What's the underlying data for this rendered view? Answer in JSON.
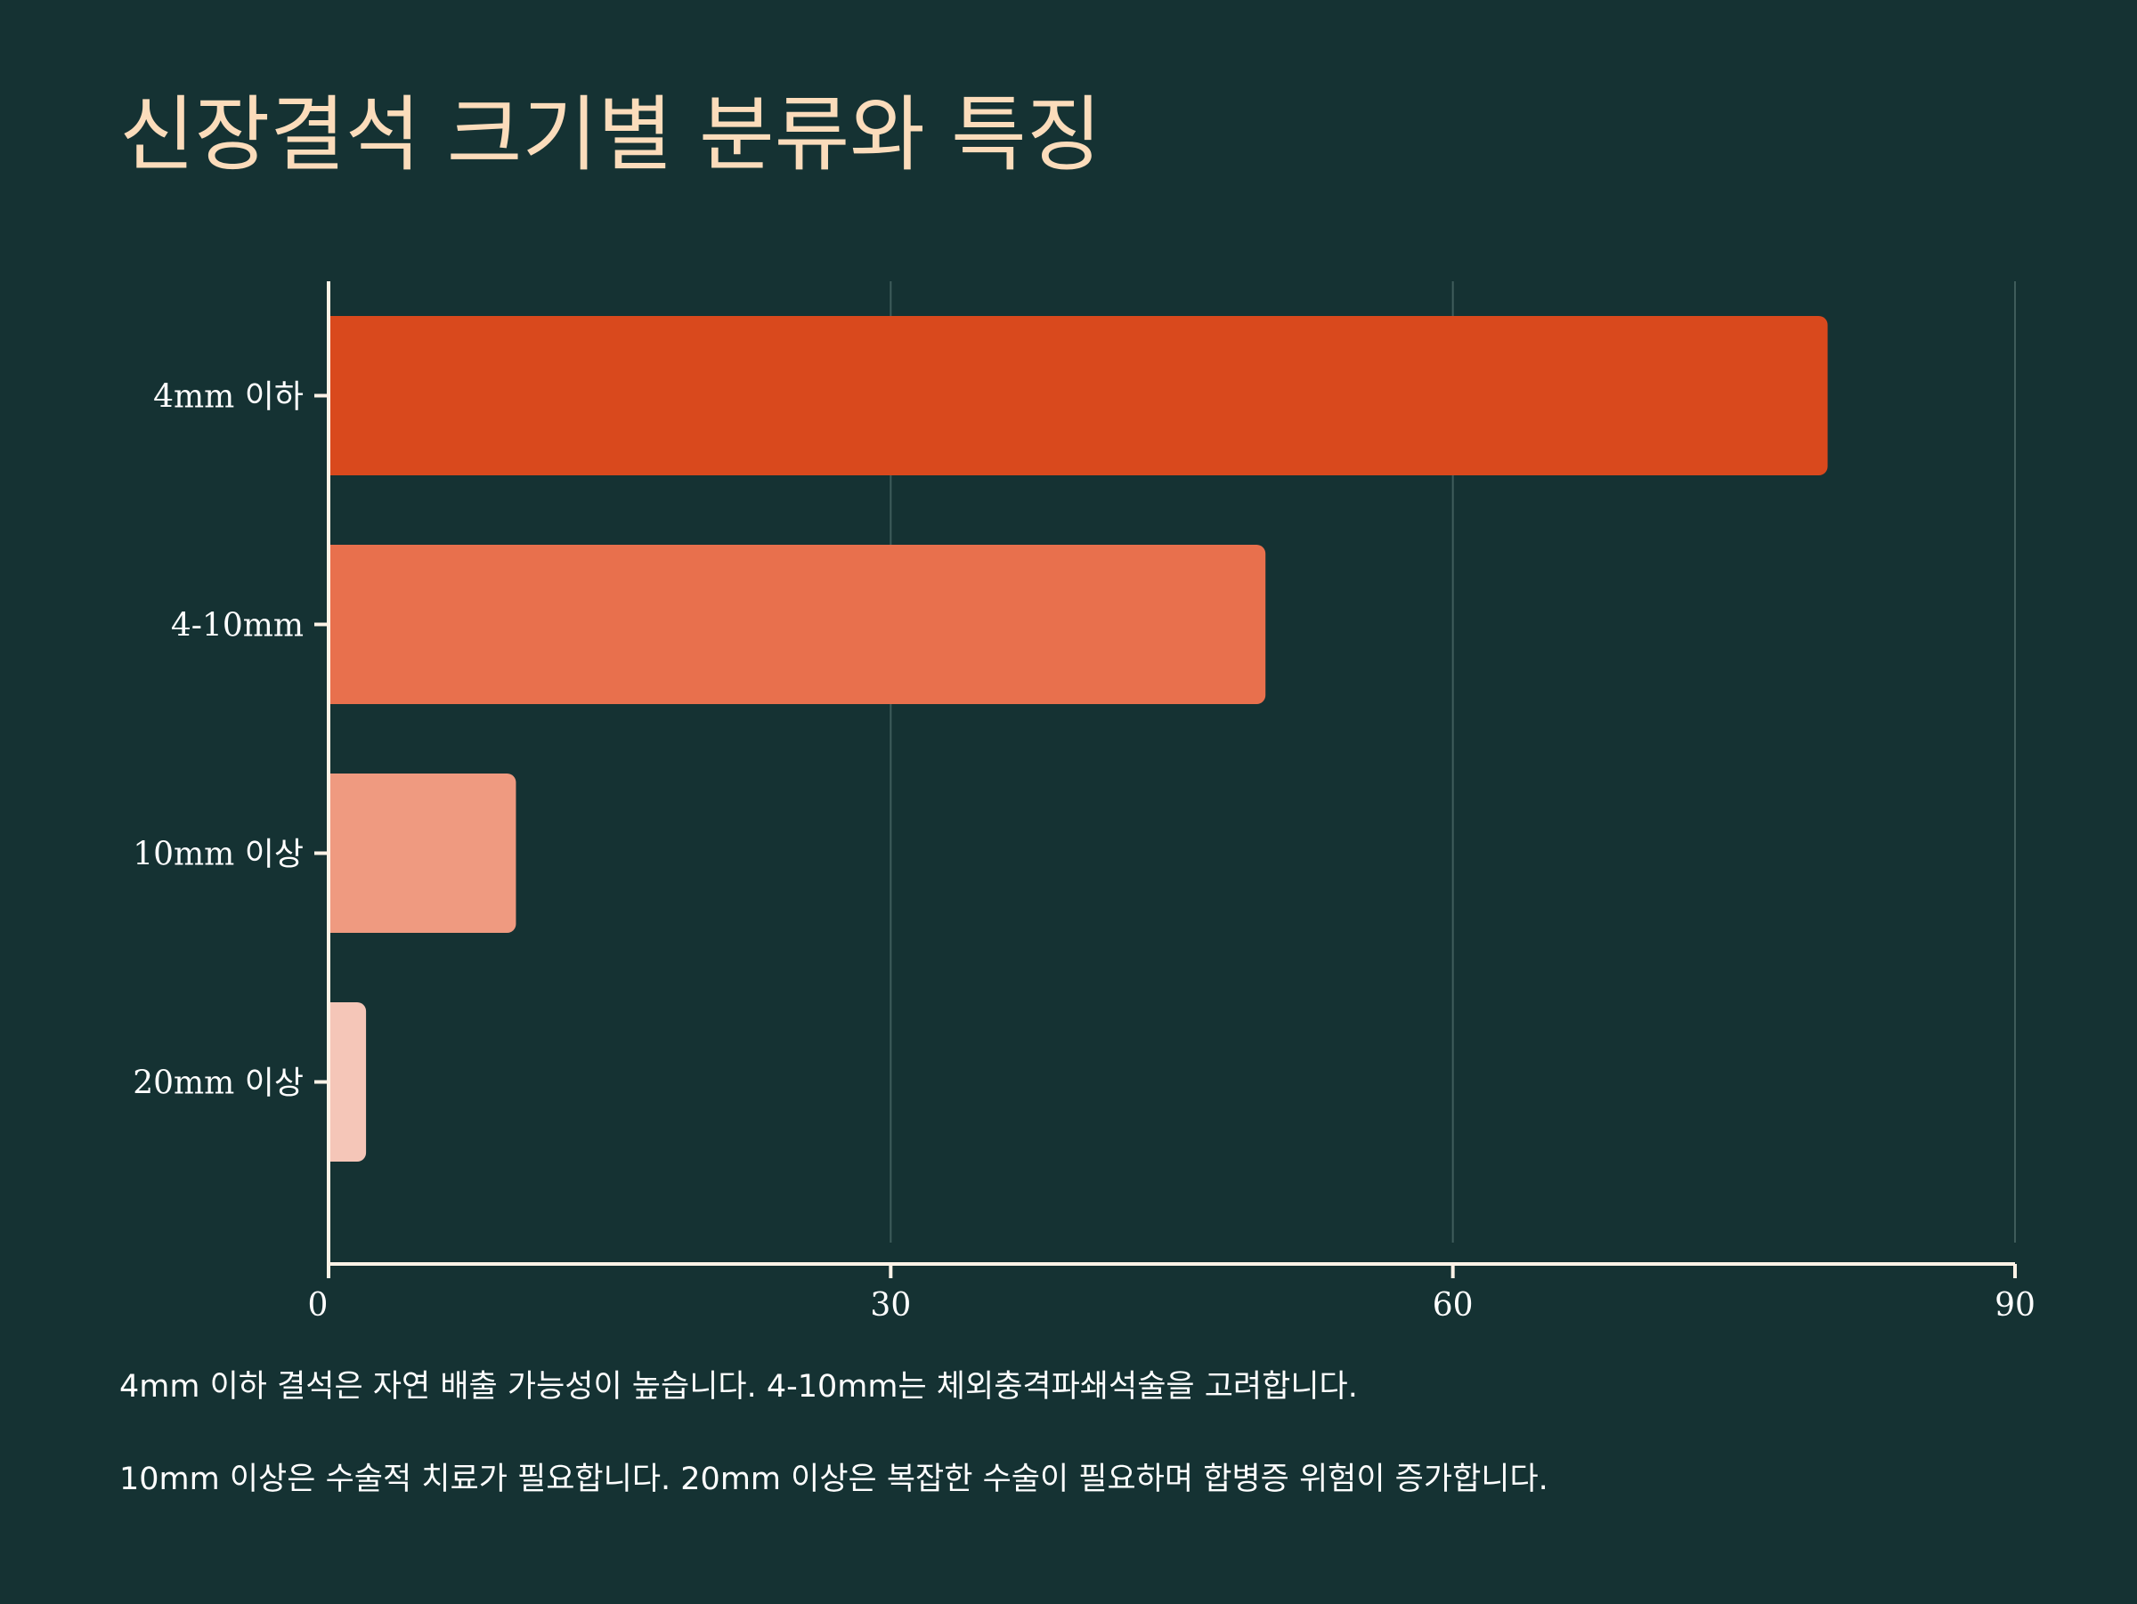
{
  "chart_data": {
    "type": "bar",
    "orientation": "horizontal",
    "title": "신장결석 크기별 분류와 특징",
    "categories": [
      "4mm 이하",
      "4-10mm",
      "10mm 이상",
      "20mm 이상"
    ],
    "values": [
      80,
      50,
      10,
      2
    ],
    "xlim": [
      0,
      90
    ],
    "xticks": [
      "0",
      "30",
      "60",
      "90"
    ],
    "xlabel": "",
    "ylabel": "",
    "grid": true,
    "legend": "none"
  },
  "colors": {
    "background": "#153233",
    "title": "#fbdcbb",
    "axis": "#fdf3e7",
    "grid": "#3f5c5b",
    "bars": [
      "#d9491d",
      "#e8704d",
      "#ef9a80",
      "#f5c6b8"
    ]
  },
  "notes": [
    "4mm 이하 결석은 자연 배출 가능성이 높습니다. 4-10mm는 체외충격파쇄석술을 고려합니다.",
    "10mm 이상은 수술적 치료가 필요합니다. 20mm 이상은 복잡한 수술이 필요하며 합병증 위험이 증가합니다."
  ]
}
